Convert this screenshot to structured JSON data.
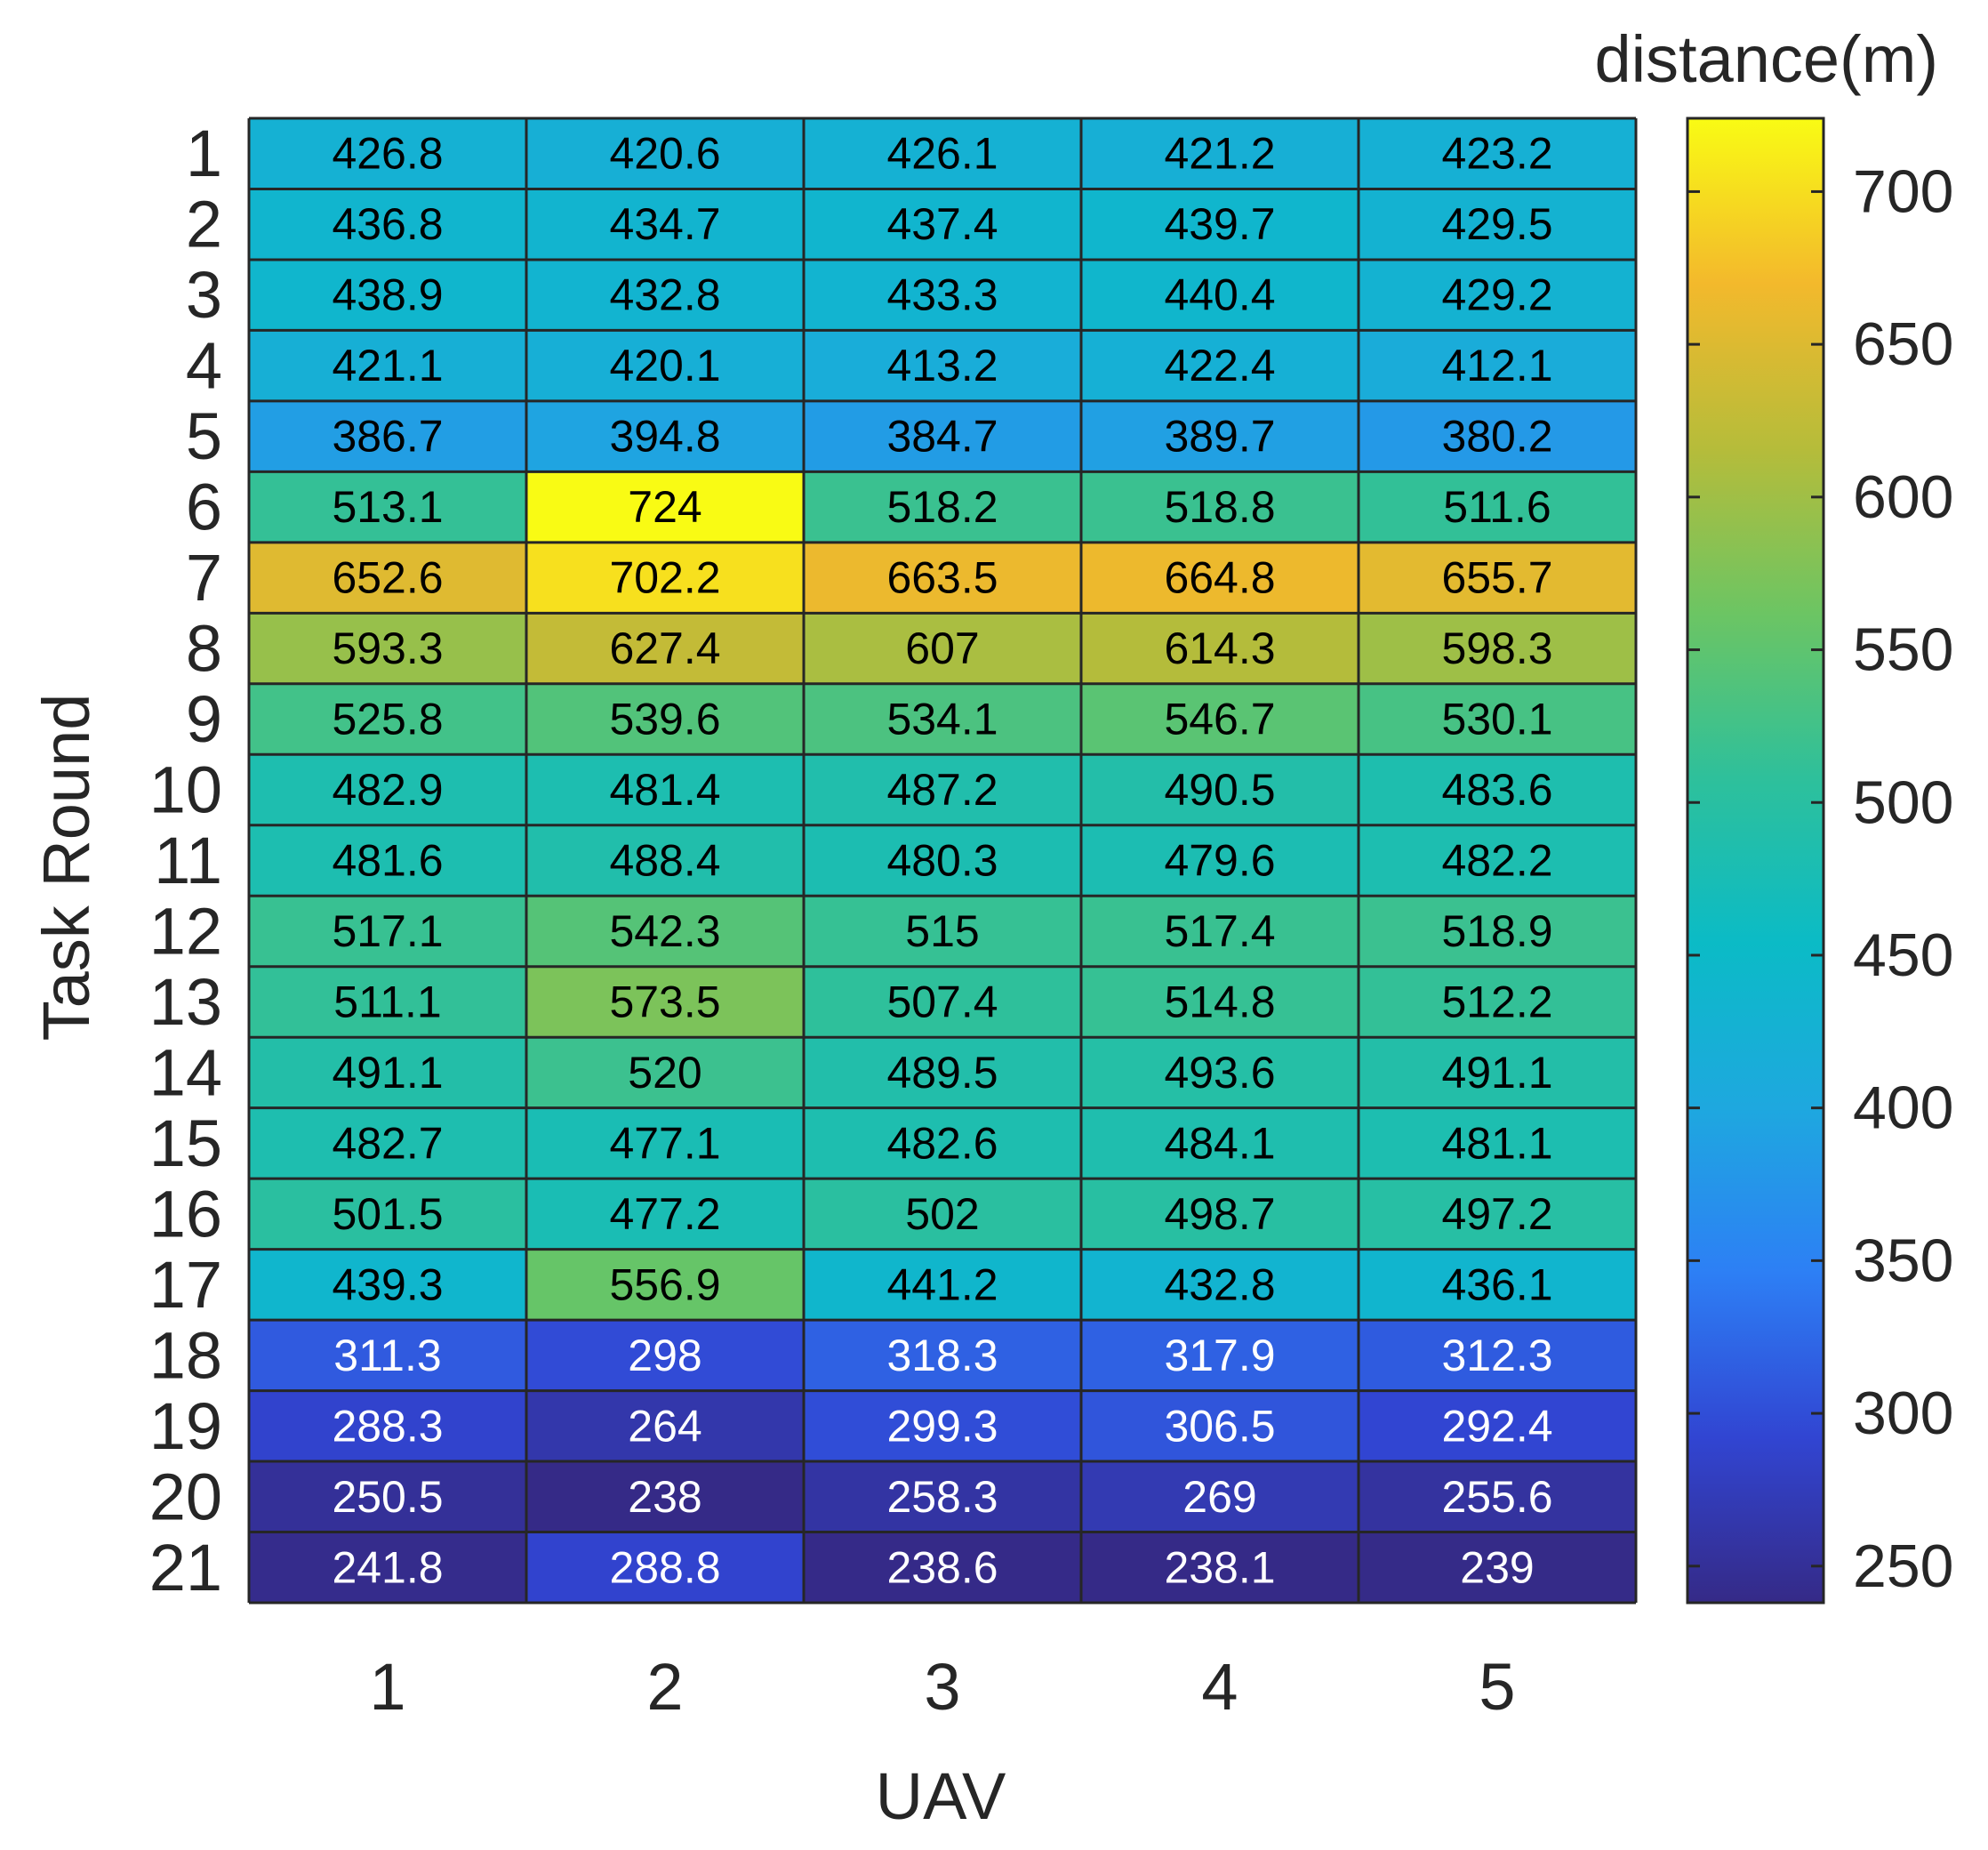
{
  "chart_data": {
    "type": "heatmap",
    "title": "",
    "xlabel": "UAV",
    "ylabel": "Task Round",
    "colorbar_label": "distance(m)",
    "x_categories": [
      "1",
      "2",
      "3",
      "4",
      "5"
    ],
    "y_categories": [
      "1",
      "2",
      "3",
      "4",
      "5",
      "6",
      "7",
      "8",
      "9",
      "10",
      "11",
      "12",
      "13",
      "14",
      "15",
      "16",
      "17",
      "18",
      "19",
      "20",
      "21"
    ],
    "values": [
      [
        426.8,
        420.6,
        426.1,
        421.2,
        423.2
      ],
      [
        436.8,
        434.7,
        437.4,
        439.7,
        429.5
      ],
      [
        438.9,
        432.8,
        433.3,
        440.4,
        429.2
      ],
      [
        421.1,
        420.1,
        413.2,
        422.4,
        412.1
      ],
      [
        386.7,
        394.8,
        384.7,
        389.7,
        380.2
      ],
      [
        513.1,
        724,
        518.2,
        518.8,
        511.6
      ],
      [
        652.6,
        702.2,
        663.5,
        664.8,
        655.7
      ],
      [
        593.3,
        627.4,
        607,
        614.3,
        598.3
      ],
      [
        525.8,
        539.6,
        534.1,
        546.7,
        530.1
      ],
      [
        482.9,
        481.4,
        487.2,
        490.5,
        483.6
      ],
      [
        481.6,
        488.4,
        480.3,
        479.6,
        482.2
      ],
      [
        517.1,
        542.3,
        515,
        517.4,
        518.9
      ],
      [
        511.1,
        573.5,
        507.4,
        514.8,
        512.2
      ],
      [
        491.1,
        520,
        489.5,
        493.6,
        491.1
      ],
      [
        482.7,
        477.1,
        482.6,
        484.1,
        481.1
      ],
      [
        501.5,
        477.2,
        502,
        498.7,
        497.2
      ],
      [
        439.3,
        556.9,
        441.2,
        432.8,
        436.1
      ],
      [
        311.3,
        298,
        318.3,
        317.9,
        312.3
      ],
      [
        288.3,
        264,
        299.3,
        306.5,
        292.4
      ],
      [
        250.5,
        238,
        258.3,
        269,
        255.6
      ],
      [
        241.8,
        288.8,
        238.6,
        238.1,
        239
      ]
    ],
    "color_range": [
      238,
      724
    ],
    "colorbar_ticks": [
      250,
      300,
      350,
      400,
      450,
      500,
      550,
      600,
      650,
      700
    ],
    "colormap": "parula",
    "colormap_stops": [
      "#352a87",
      "#3145d2",
      "#2d7ff5",
      "#1ea8df",
      "#0bbbc6",
      "#2ec09b",
      "#6cc563",
      "#b6bc3a",
      "#f3b92c",
      "#f9fb14"
    ],
    "grid_color": "#262626",
    "dark_text_color": "#000000",
    "light_text_color": "#ffffff",
    "axis_text_color": "#262626"
  }
}
